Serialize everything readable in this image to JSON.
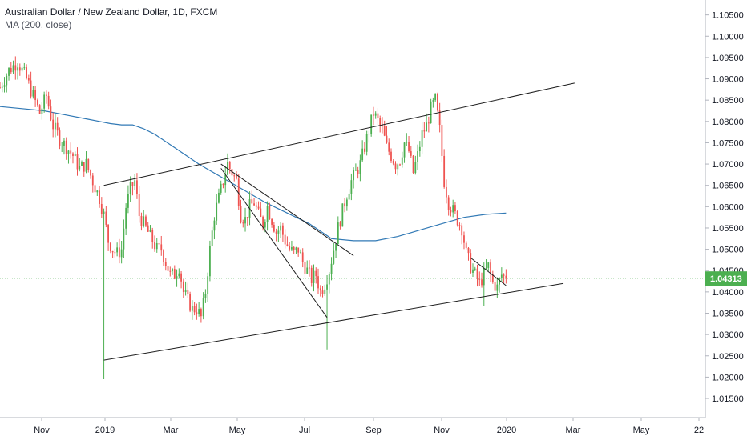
{
  "header": {
    "title": "Australian Dollar / New Zealand Dollar, 1D, FXCM",
    "indicator": "MA (200, close)"
  },
  "chart_data": {
    "type": "candlestick",
    "symbol": "AUDNZD",
    "ylim": [
      1.0105,
      1.1085
    ],
    "y_ticks": [
      "1.01500",
      "1.02000",
      "1.02500",
      "1.03000",
      "1.03500",
      "1.04000",
      "1.04500",
      "1.05000",
      "1.05500",
      "1.06000",
      "1.06500",
      "1.07000",
      "1.07500",
      "1.08000",
      "1.08500",
      "1.09000",
      "1.09500",
      "1.10000",
      "1.10500"
    ],
    "x_ticks": [
      "Nov",
      "2019",
      "Mar",
      "May",
      "Jul",
      "Sep",
      "Nov",
      "2020",
      "Mar",
      "May",
      "22"
    ],
    "last_price": "1.04313",
    "colors": {
      "up": "#4caf50",
      "down": "#ef5350",
      "ma": "#3179b5",
      "trendline": "#1e1e1e",
      "price_tag": "#4caf50",
      "grid": "#e0e3eb"
    },
    "price_path": [
      [
        0,
        1.088
      ],
      [
        4,
        1.092
      ],
      [
        8,
        1.094
      ],
      [
        12,
        1.09
      ],
      [
        15,
        1.086
      ],
      [
        18,
        1.082
      ],
      [
        21,
        1.086
      ],
      [
        24,
        1.079
      ],
      [
        27,
        1.076
      ],
      [
        30,
        1.074
      ],
      [
        33,
        1.072
      ],
      [
        36,
        1.069
      ],
      [
        39,
        1.07
      ],
      [
        42,
        1.066
      ],
      [
        45,
        1.062
      ],
      [
        47,
        1.058
      ],
      [
        49,
        1.052
      ],
      [
        51,
        1.05
      ],
      [
        53,
        1.049
      ],
      [
        55,
        1.05
      ],
      [
        57,
        1.06
      ],
      [
        59,
        1.064
      ],
      [
        61,
        1.066
      ],
      [
        63,
        1.058
      ],
      [
        65,
        1.056
      ],
      [
        67,
        1.054
      ],
      [
        69,
        1.052
      ],
      [
        71,
        1.05
      ],
      [
        73,
        1.05
      ],
      [
        75,
        1.047
      ],
      [
        77,
        1.044
      ],
      [
        79,
        1.044
      ],
      [
        81,
        1.046
      ],
      [
        83,
        1.04
      ],
      [
        85,
        1.038
      ],
      [
        87,
        1.036
      ],
      [
        89,
        1.036
      ],
      [
        91,
        1.034
      ],
      [
        93,
        1.04
      ],
      [
        95,
        1.05
      ],
      [
        97,
        1.058
      ],
      [
        99,
        1.062
      ],
      [
        101,
        1.066
      ],
      [
        103,
        1.07
      ],
      [
        105,
        1.068
      ],
      [
        107,
        1.066
      ],
      [
        109,
        1.058
      ],
      [
        111,
        1.057
      ],
      [
        113,
        1.06
      ],
      [
        115,
        1.061
      ],
      [
        117,
        1.058
      ],
      [
        119,
        1.056
      ],
      [
        121,
        1.06
      ],
      [
        123,
        1.057
      ],
      [
        125,
        1.054
      ],
      [
        127,
        1.055
      ],
      [
        129,
        1.052
      ],
      [
        131,
        1.05
      ],
      [
        133,
        1.049
      ],
      [
        135,
        1.05
      ],
      [
        137,
        1.047
      ],
      [
        139,
        1.045
      ],
      [
        141,
        1.043
      ],
      [
        143,
        1.044
      ],
      [
        145,
        1.04
      ],
      [
        147,
        1.042
      ],
      [
        149,
        1.045
      ],
      [
        151,
        1.05
      ],
      [
        153,
        1.055
      ],
      [
        155,
        1.059
      ],
      [
        157,
        1.063
      ],
      [
        159,
        1.066
      ],
      [
        161,
        1.068
      ],
      [
        163,
        1.07
      ],
      [
        165,
        1.074
      ],
      [
        167,
        1.078
      ],
      [
        169,
        1.082
      ],
      [
        171,
        1.08
      ],
      [
        173,
        1.078
      ],
      [
        175,
        1.074
      ],
      [
        177,
        1.072
      ],
      [
        179,
        1.07
      ],
      [
        181,
        1.071
      ],
      [
        183,
        1.075
      ],
      [
        185,
        1.073
      ],
      [
        187,
        1.068
      ],
      [
        189,
        1.072
      ],
      [
        191,
        1.077
      ],
      [
        193,
        1.079
      ],
      [
        195,
        1.083
      ],
      [
        197,
        1.085
      ],
      [
        199,
        1.078
      ],
      [
        201,
        1.066
      ],
      [
        203,
        1.061
      ],
      [
        205,
        1.059
      ],
      [
        207,
        1.057
      ],
      [
        209,
        1.055
      ],
      [
        211,
        1.049
      ],
      [
        213,
        1.046
      ],
      [
        215,
        1.044
      ],
      [
        217,
        1.042
      ],
      [
        219,
        1.044
      ],
      [
        221,
        1.046
      ],
      [
        223,
        1.042
      ],
      [
        225,
        1.041
      ],
      [
        227,
        1.044
      ],
      [
        229,
        1.0431
      ]
    ],
    "ma_path": [
      [
        0,
        1.0835
      ],
      [
        10,
        1.083
      ],
      [
        20,
        1.0825
      ],
      [
        30,
        1.0815
      ],
      [
        40,
        1.0805
      ],
      [
        50,
        1.0795
      ],
      [
        55,
        1.0792
      ],
      [
        60,
        1.0792
      ],
      [
        65,
        1.0783
      ],
      [
        70,
        1.077
      ],
      [
        80,
        1.0735
      ],
      [
        90,
        1.07
      ],
      [
        100,
        1.067
      ],
      [
        110,
        1.064
      ],
      [
        120,
        1.061
      ],
      [
        130,
        1.0585
      ],
      [
        140,
        1.056
      ],
      [
        150,
        1.0525
      ],
      [
        160,
        1.052
      ],
      [
        170,
        1.052
      ],
      [
        180,
        1.053
      ],
      [
        190,
        1.0545
      ],
      [
        200,
        1.056
      ],
      [
        210,
        1.0575
      ],
      [
        220,
        1.0582
      ],
      [
        229,
        1.0585
      ]
    ],
    "wick_extremes": [
      {
        "i": 47,
        "low": 1.0195
      },
      {
        "i": 148,
        "low": 1.0265
      },
      {
        "i": 103,
        "high": 1.0725
      },
      {
        "i": 219,
        "low": 1.0367
      }
    ],
    "trendlines": [
      {
        "name": "upper-channel",
        "p1": [
          47,
          1.065
        ],
        "p2": [
          260,
          1.089
        ]
      },
      {
        "name": "lower-support",
        "p1": [
          47,
          1.024
        ],
        "p2": [
          255,
          1.042
        ]
      },
      {
        "name": "descending-upper",
        "p1": [
          100,
          1.07
        ],
        "p2": [
          160,
          1.0485
        ]
      },
      {
        "name": "descending-lower",
        "p1": [
          100,
          1.069
        ],
        "p2": [
          148,
          1.034
        ]
      },
      {
        "name": "wedge-upper",
        "p1": [
          213,
          1.048
        ],
        "p2": [
          229,
          1.0415
        ]
      }
    ]
  }
}
